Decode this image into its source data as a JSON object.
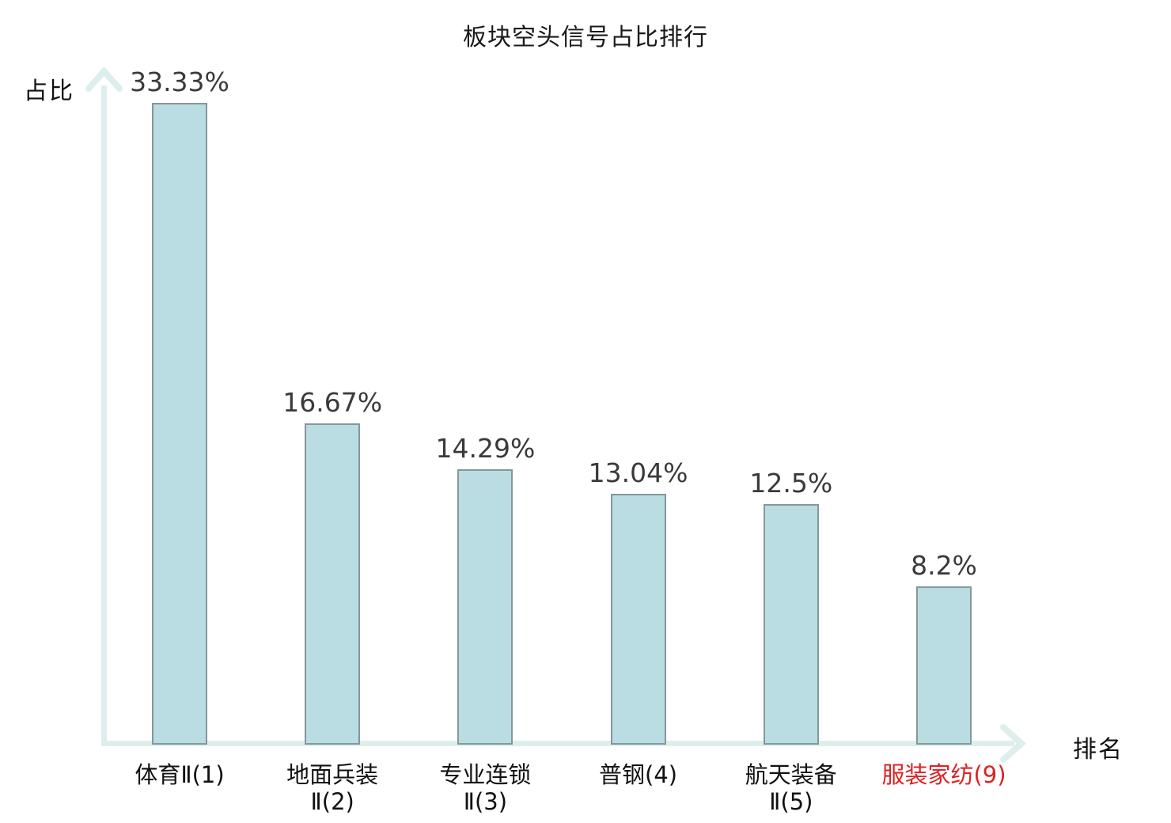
{
  "chart_data": {
    "type": "bar",
    "title": "板块空头信号占比排行",
    "xlabel": "排名",
    "ylabel": "占比",
    "categories": [
      {
        "label": "体育Ⅱ(1)",
        "lines": [
          "体育Ⅱ(1)"
        ],
        "highlighted": false
      },
      {
        "label": "地面兵装Ⅱ(2)",
        "lines": [
          "地面兵装",
          "Ⅱ(2)"
        ],
        "highlighted": false
      },
      {
        "label": "专业连锁Ⅱ(3)",
        "lines": [
          "专业连锁",
          "Ⅱ(3)"
        ],
        "highlighted": false
      },
      {
        "label": "普钢(4)",
        "lines": [
          "普钢(4)"
        ],
        "highlighted": false
      },
      {
        "label": "航天装备Ⅱ(5)",
        "lines": [
          "航天装备",
          "Ⅱ(5)"
        ],
        "highlighted": false
      },
      {
        "label": "服装家纺(9)",
        "lines": [
          "服装家纺(9)"
        ],
        "highlighted": true
      }
    ],
    "values": [
      33.33,
      16.67,
      14.29,
      13.04,
      12.5,
      8.2
    ],
    "value_labels": [
      "33.33%",
      "16.67%",
      "14.29%",
      "13.04%",
      "12.5%",
      "8.2%"
    ],
    "ylim": [
      0,
      35
    ],
    "grid": false,
    "legend": "none",
    "colors": {
      "bar_fill": "#b9dde2",
      "bar_border": "#859799",
      "axis": "#ddefed",
      "value_text": "#3a3a3a",
      "category_text": "#111111",
      "highlight_text": "#e02020"
    }
  }
}
